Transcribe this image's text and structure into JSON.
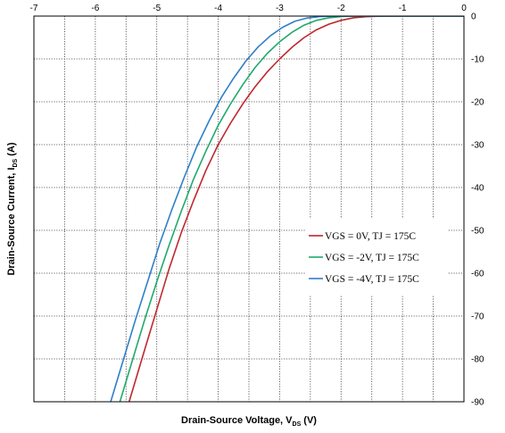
{
  "chart_data": {
    "type": "line",
    "title": "",
    "xlabel": {
      "main": "Drain-Source Voltage, V",
      "sub": "DS",
      "unit": " (V)"
    },
    "ylabel": {
      "main": "Drain-Source Current, I",
      "sub": "DS",
      "unit": " (A)"
    },
    "xlim": [
      -7,
      0
    ],
    "ylim": [
      -90,
      0
    ],
    "x_ticks": [
      -7,
      -6,
      -5,
      -4,
      -3,
      -2,
      -1,
      0
    ],
    "y_ticks": [
      0,
      -10,
      -20,
      -30,
      -40,
      -50,
      -60,
      -70,
      -80,
      -90
    ],
    "x_tick_labels": [
      "-7",
      "-6",
      "-5",
      "-4",
      "-3",
      "-2",
      "-1",
      "0"
    ],
    "y_tick_labels": [
      "0",
      "-10",
      "-20",
      "-30",
      "-40",
      "-50",
      "-60",
      "-70",
      "-80",
      "-90"
    ],
    "x_axis_position": "top",
    "y_axis_position": "right",
    "grid": true,
    "grid_subdivisions_x": 2,
    "grid_subdivisions_y": 1,
    "legend_position": "center-right",
    "series": [
      {
        "name": "VGS = 0V, TJ = 175C",
        "color": "#c0272d",
        "x": [
          -5.45,
          -5.2,
          -5.0,
          -4.8,
          -4.6,
          -4.4,
          -4.2,
          -4.0,
          -3.8,
          -3.6,
          -3.4,
          -3.2,
          -3.0,
          -2.8,
          -2.6,
          -2.4,
          -2.2,
          -2.0,
          -1.8,
          -1.6,
          -1.4,
          -1.2,
          -1.0,
          -0.5,
          0.0
        ],
        "y": [
          -90,
          -78,
          -68.5,
          -59,
          -50.5,
          -43,
          -36,
          -30,
          -25,
          -20.5,
          -16.5,
          -13,
          -10,
          -7.3,
          -5.0,
          -3.2,
          -1.9,
          -1.0,
          -0.4,
          -0.15,
          -0.05,
          -0.01,
          0,
          0,
          0
        ]
      },
      {
        "name": "VGS = -2V, TJ = 175C",
        "color": "#20a96b",
        "x": [
          -5.6,
          -5.4,
          -5.2,
          -5.0,
          -4.8,
          -4.6,
          -4.4,
          -4.2,
          -4.0,
          -3.8,
          -3.6,
          -3.4,
          -3.2,
          -3.0,
          -2.8,
          -2.6,
          -2.4,
          -2.2,
          -2.0,
          -1.8,
          -1.6,
          -1.4,
          -1.0,
          0.0
        ],
        "y": [
          -90,
          -80.5,
          -71,
          -62,
          -53.5,
          -45.5,
          -38,
          -31.5,
          -25.5,
          -20.5,
          -16,
          -12,
          -8.7,
          -6,
          -3.8,
          -2.1,
          -1.0,
          -0.4,
          -0.1,
          -0.02,
          0,
          0,
          0,
          0
        ]
      },
      {
        "name": "VGS = -4V, TJ = 175C",
        "color": "#2f7fc8",
        "x": [
          -5.75,
          -5.55,
          -5.35,
          -5.15,
          -4.95,
          -4.75,
          -4.55,
          -4.35,
          -4.15,
          -3.95,
          -3.75,
          -3.55,
          -3.35,
          -3.15,
          -2.95,
          -2.75,
          -2.55,
          -2.35,
          -2.15,
          -2.0,
          -1.6,
          -1.0,
          0.0
        ],
        "y": [
          -90,
          -80.5,
          -71,
          -62,
          -53,
          -45,
          -37.5,
          -30.5,
          -24.5,
          -19,
          -14.5,
          -10.5,
          -7.2,
          -4.6,
          -2.6,
          -1.2,
          -0.45,
          -0.12,
          -0.02,
          0,
          0,
          0,
          0
        ]
      }
    ]
  }
}
